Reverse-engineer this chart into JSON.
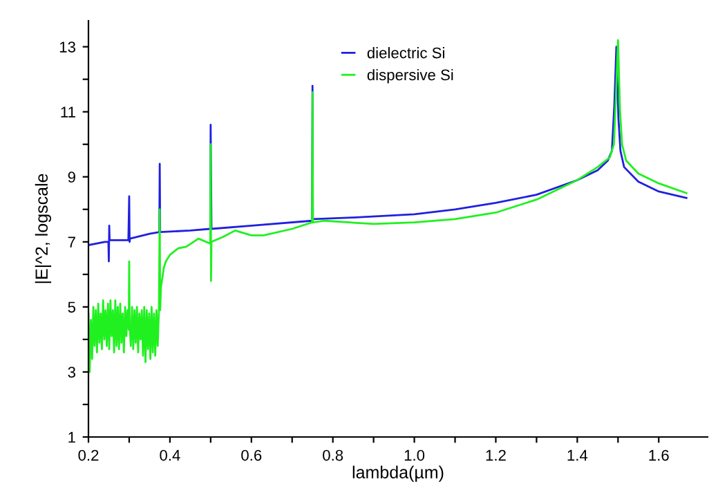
{
  "chart_data": {
    "type": "line",
    "xlabel": "lambda(µm)",
    "ylabel": "|E|^2, logscale",
    "xlim": [
      0.2,
      1.72
    ],
    "xticks": [
      {
        "value": 0.2,
        "label": "0.2"
      },
      {
        "value": 0.3,
        "label": null
      },
      {
        "value": 0.4,
        "label": "0.4"
      },
      {
        "value": 0.5,
        "label": null
      },
      {
        "value": 0.6,
        "label": "0.6"
      },
      {
        "value": 0.7,
        "label": null
      },
      {
        "value": 0.8,
        "label": "0.8"
      },
      {
        "value": 0.9,
        "label": null
      },
      {
        "value": 1.0,
        "label": "1.0"
      },
      {
        "value": 1.1,
        "label": null
      },
      {
        "value": 1.2,
        "label": "1.2"
      },
      {
        "value": 1.3,
        "label": null
      },
      {
        "value": 1.4,
        "label": "1.4"
      },
      {
        "value": 1.5,
        "label": null
      },
      {
        "value": 1.6,
        "label": "1.6"
      }
    ],
    "ylim": [
      1,
      13.8
    ],
    "yticks": [
      1,
      {
        "value": 2,
        "label": null
      },
      3,
      {
        "value": 4,
        "label": null
      },
      5,
      {
        "value": 6,
        "label": null
      },
      7,
      {
        "value": 8,
        "label": null
      },
      9,
      {
        "value": 10,
        "label": null
      },
      11,
      {
        "value": 12,
        "label": null
      },
      13
    ],
    "grid": false,
    "legend": "top",
    "marker": "none",
    "line_style": "solid",
    "series": [
      {
        "name": "dielectric Si",
        "color": "#2020e0",
        "x": [
          0.2,
          0.24,
          0.249,
          0.25,
          0.251,
          0.252,
          0.298,
          0.3,
          0.301,
          0.302,
          0.35,
          0.374,
          0.375,
          0.376,
          0.45,
          0.499,
          0.5,
          0.502,
          0.6,
          0.749,
          0.75,
          0.751,
          0.85,
          1.0,
          1.1,
          1.2,
          1.3,
          1.4,
          1.45,
          1.475,
          1.485,
          1.491,
          1.496,
          1.501,
          1.506,
          1.515,
          1.55,
          1.6,
          1.668
        ],
        "values": [
          6.9,
          7.0,
          7.0,
          6.4,
          7.5,
          7.05,
          7.05,
          8.4,
          7.0,
          7.1,
          7.25,
          7.3,
          9.4,
          7.3,
          7.35,
          7.4,
          10.6,
          7.4,
          7.5,
          7.65,
          11.8,
          7.7,
          7.75,
          7.85,
          8.0,
          8.2,
          8.45,
          8.9,
          9.2,
          9.5,
          9.8,
          11.2,
          13.0,
          10.8,
          9.8,
          9.3,
          8.85,
          8.55,
          8.35
        ]
      },
      {
        "name": "dispersive Si",
        "color": "#20f020",
        "x": [
          0.2,
          0.203,
          0.206,
          0.209,
          0.212,
          0.215,
          0.218,
          0.221,
          0.224,
          0.227,
          0.23,
          0.233,
          0.236,
          0.239,
          0.242,
          0.245,
          0.248,
          0.251,
          0.254,
          0.257,
          0.26,
          0.263,
          0.266,
          0.269,
          0.272,
          0.275,
          0.278,
          0.281,
          0.284,
          0.287,
          0.29,
          0.293,
          0.296,
          0.299,
          0.3,
          0.301,
          0.304,
          0.307,
          0.31,
          0.313,
          0.316,
          0.319,
          0.322,
          0.325,
          0.328,
          0.331,
          0.334,
          0.337,
          0.34,
          0.343,
          0.346,
          0.349,
          0.352,
          0.355,
          0.358,
          0.361,
          0.364,
          0.367,
          0.37,
          0.373,
          0.375,
          0.376,
          0.378,
          0.385,
          0.39,
          0.4,
          0.42,
          0.44,
          0.47,
          0.499,
          0.5,
          0.501,
          0.502,
          0.53,
          0.56,
          0.6,
          0.63,
          0.7,
          0.749,
          0.75,
          0.751,
          0.78,
          0.9,
          1.0,
          1.1,
          1.2,
          1.3,
          1.4,
          1.45,
          1.48,
          1.49,
          1.495,
          1.5,
          1.505,
          1.51,
          1.52,
          1.55,
          1.6,
          1.668
        ],
        "values": [
          4.8,
          3.0,
          4.6,
          3.4,
          5.0,
          3.8,
          4.9,
          3.6,
          5.1,
          3.9,
          4.8,
          3.7,
          5.2,
          4.0,
          4.9,
          3.8,
          5.1,
          3.7,
          5.2,
          4.1,
          4.9,
          3.6,
          5.2,
          3.8,
          5.0,
          3.7,
          5.1,
          3.9,
          4.8,
          3.6,
          5.0,
          4.1,
          4.9,
          4.3,
          6.4,
          4.5,
          3.8,
          5.0,
          3.7,
          4.9,
          3.9,
          5.0,
          3.6,
          4.8,
          4.0,
          4.9,
          3.5,
          5.0,
          3.3,
          4.9,
          3.7,
          4.8,
          3.4,
          5.0,
          3.6,
          4.8,
          3.5,
          4.9,
          3.8,
          4.9,
          8.0,
          4.9,
          5.6,
          6.2,
          6.4,
          6.6,
          6.8,
          6.85,
          7.1,
          6.95,
          10.0,
          5.8,
          7.0,
          7.15,
          7.35,
          7.2,
          7.2,
          7.4,
          7.6,
          11.6,
          7.6,
          7.65,
          7.55,
          7.6,
          7.7,
          7.9,
          8.3,
          8.9,
          9.3,
          9.6,
          10.0,
          11.5,
          13.2,
          11.0,
          10.0,
          9.5,
          9.1,
          8.8,
          8.5
        ]
      }
    ]
  }
}
